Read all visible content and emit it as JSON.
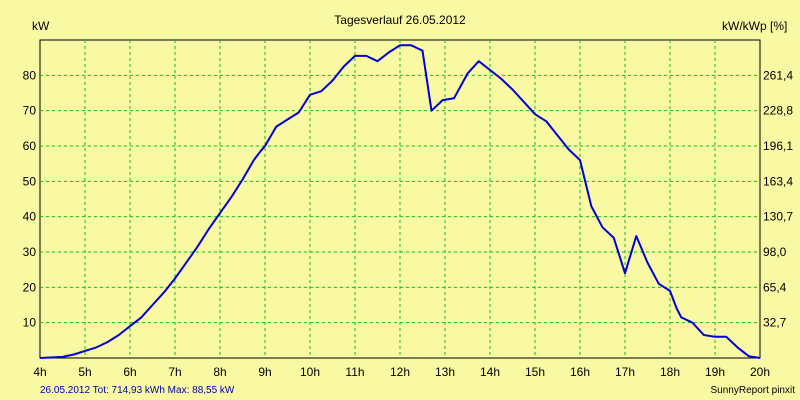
{
  "chart_data": {
    "type": "line",
    "title": "Tagesverlauf 26.05.2012",
    "ylabel_left": "kW",
    "ylabel_right": "kW/kWp [%]",
    "x_ticks": [
      "4h",
      "5h",
      "6h",
      "7h",
      "8h",
      "9h",
      "10h",
      "11h",
      "12h",
      "13h",
      "14h",
      "15h",
      "16h",
      "17h",
      "18h",
      "19h",
      "20h"
    ],
    "xlim": [
      4,
      20
    ],
    "ylim": [
      0,
      90
    ],
    "y_ticks_left": [
      "10",
      "20",
      "30",
      "40",
      "50",
      "60",
      "70",
      "80"
    ],
    "y_ticks_right": [
      "32,7",
      "65,4",
      "98,0",
      "130,7",
      "163,4",
      "196,1",
      "228,8",
      "261,4"
    ],
    "grid": true,
    "line_color": "#0000d8",
    "grid_color": "#11c011",
    "series": [
      {
        "name": "",
        "x": [
          4.0,
          4.5,
          4.75,
          5.0,
          5.25,
          5.5,
          5.75,
          6.0,
          6.25,
          6.5,
          6.75,
          7.0,
          7.25,
          7.5,
          7.75,
          8.0,
          8.25,
          8.5,
          8.75,
          8.9,
          9.0,
          9.25,
          9.5,
          9.75,
          10.0,
          10.25,
          10.5,
          10.75,
          11.0,
          11.25,
          11.5,
          11.75,
          12.0,
          12.25,
          12.5,
          12.7,
          12.95,
          13.2,
          13.5,
          13.75,
          14.0,
          14.25,
          14.5,
          14.75,
          15.0,
          15.25,
          15.5,
          15.75,
          16.0,
          16.25,
          16.5,
          16.75,
          17.0,
          17.25,
          17.5,
          17.75,
          18.0,
          18.15,
          18.25,
          18.5,
          18.75,
          19.0,
          19.25,
          19.5,
          19.75,
          20.0
        ],
        "y": [
          0,
          0.3,
          1,
          2,
          3,
          4.5,
          6.5,
          9,
          11.5,
          15,
          18.5,
          22.5,
          27,
          31.5,
          36.5,
          41,
          45.5,
          50.5,
          56,
          58.5,
          60,
          65.5,
          67.5,
          69.5,
          74.5,
          75.5,
          78.5,
          82.5,
          85.5,
          85.5,
          84,
          86.5,
          88.5,
          88.5,
          87,
          70,
          73,
          73.5,
          80.5,
          84,
          81.5,
          79,
          76,
          72.5,
          69,
          67,
          63,
          59,
          56,
          43,
          37,
          34,
          24,
          34.5,
          27,
          21,
          19,
          14,
          11.5,
          10,
          6.5,
          6,
          6,
          3,
          0.5,
          0
        ]
      }
    ]
  },
  "footer": {
    "left": "26.05.2012 Tot: 714,93 kWh Max: 88,55 kW",
    "right": "SunnyReport pinxit"
  }
}
